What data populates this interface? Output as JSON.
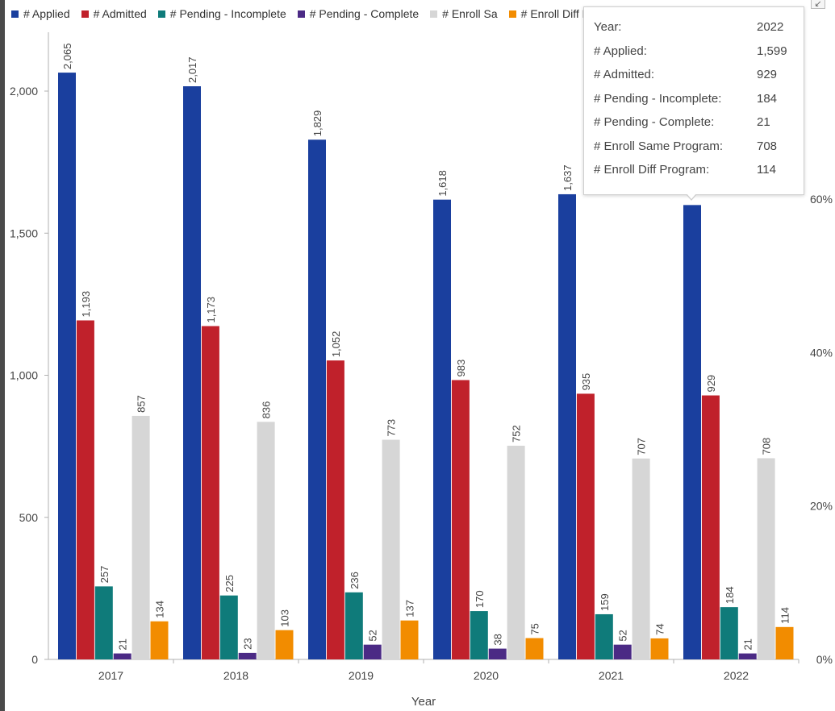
{
  "chart_data": {
    "type": "bar",
    "xlabel": "Year",
    "categories": [
      "2017",
      "2018",
      "2019",
      "2020",
      "2021",
      "2022"
    ],
    "series": [
      {
        "name": "#  Applied",
        "color": "#1a3f9e",
        "values": [
          2065,
          2017,
          1829,
          1618,
          1637,
          1599
        ]
      },
      {
        "name": "#  Admitted",
        "color": "#c0212b",
        "values": [
          1193,
          1173,
          1052,
          983,
          935,
          929
        ]
      },
      {
        "name": "# Pending - Incomplete",
        "color": "#0f7b7a",
        "values": [
          257,
          225,
          236,
          170,
          159,
          184
        ]
      },
      {
        "name": "# Pending - Complete",
        "color": "#4b2a85",
        "values": [
          21,
          23,
          52,
          38,
          52,
          21
        ]
      },
      {
        "name": "# Enroll  Sa",
        "color": "#d6d6d6",
        "values": [
          857,
          836,
          773,
          752,
          707,
          708
        ]
      },
      {
        "name": "# Enroll Diff Program",
        "color": "#f28c00",
        "values": [
          134,
          103,
          137,
          75,
          74,
          114
        ]
      }
    ],
    "value_labels": [
      [
        "2,065",
        "2,017",
        "1,829",
        "1,618",
        "1,637",
        ""
      ],
      [
        "1,193",
        "1,173",
        "1,052",
        "983",
        "935",
        "929"
      ],
      [
        "257",
        "225",
        "236",
        "170",
        "159",
        "184"
      ],
      [
        "21",
        "23",
        "52",
        "38",
        "52",
        "21"
      ],
      [
        "857",
        "836",
        "773",
        "752",
        "707",
        "708"
      ],
      [
        "134",
        "103",
        "137",
        "75",
        "74",
        "114"
      ]
    ],
    "y_axis": {
      "ticks": [
        0,
        500,
        1000,
        1500,
        2000
      ],
      "tick_labels": [
        "0",
        "500",
        "1,000",
        "1,500",
        "2,000"
      ],
      "ylim": [
        0,
        2200
      ]
    },
    "y2_axis": {
      "ticks": [
        0,
        20,
        40,
        60
      ],
      "tick_labels": [
        "0%",
        "20%",
        "40%",
        "60%"
      ],
      "ylim": [
        0,
        73
      ]
    },
    "grid": false,
    "legend_position": "top-left"
  },
  "tooltip": {
    "rows": [
      {
        "label": "Year:",
        "value": "2022"
      },
      {
        "label": "# Applied:",
        "value": "1,599"
      },
      {
        "label": "# Admitted:",
        "value": "929"
      },
      {
        "label": "# Pending - Incomplete:",
        "value": "184"
      },
      {
        "label": "# Pending - Complete:",
        "value": "21"
      },
      {
        "label": "# Enroll Same Program:",
        "value": "708"
      },
      {
        "label": "# Enroll Diff Program:",
        "value": "114"
      }
    ]
  },
  "icons": {
    "corner": "collapse-icon",
    "corner_glyph": "↙"
  },
  "colors": {
    "axis": "#b0b0b0",
    "text": "#444444"
  }
}
